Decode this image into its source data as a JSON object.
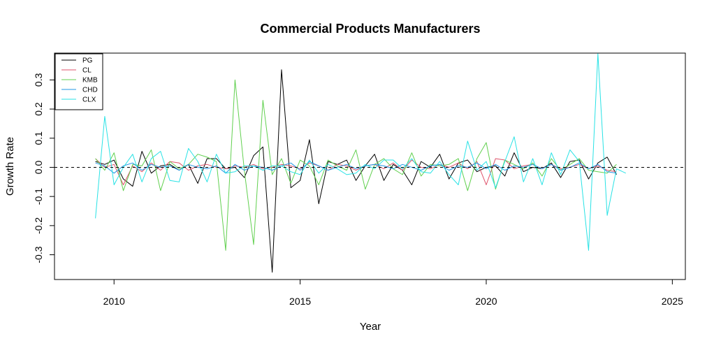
{
  "chart_data": {
    "type": "line",
    "title": "Commercial Products Manufacturers",
    "xlabel": "Year",
    "ylabel": "Growth Rate",
    "xlim": [
      2008.4,
      2025.35
    ],
    "ylim": [
      -0.385,
      0.392
    ],
    "x_ticks": [
      2010,
      2015,
      2020,
      2025
    ],
    "y_ticks": [
      -0.3,
      -0.2,
      -0.1,
      0.0,
      0.1,
      0.2,
      0.3
    ],
    "y_tick_labels": [
      "-0.3",
      "-0.2",
      "-0.1",
      "0.0",
      "0.1",
      "0.2",
      "0.3"
    ],
    "reference_line": {
      "y": 0,
      "style": "dashed",
      "color": "#000000"
    },
    "legend": {
      "position": "top-left"
    },
    "x_start": 2009.5,
    "x_step": 0.25,
    "series": [
      {
        "name": "PG",
        "color": "#000000",
        "values": [
          0.02,
          0.01,
          0.025,
          -0.04,
          -0.065,
          0.055,
          -0.02,
          0.005,
          0.01,
          -0.01,
          0.01,
          -0.055,
          0.03,
          0.03,
          -0.005,
          0.0,
          -0.035,
          0.04,
          0.07,
          -0.36,
          0.335,
          -0.07,
          -0.045,
          0.095,
          -0.125,
          0.02,
          0.01,
          0.025,
          -0.045,
          0.005,
          0.045,
          -0.045,
          0.01,
          -0.01,
          -0.06,
          0.02,
          0.0,
          0.045,
          -0.04,
          0.015,
          0.025,
          -0.015,
          0.0,
          0.005,
          -0.03,
          0.05,
          -0.015,
          0.0,
          -0.005,
          0.015,
          -0.035,
          0.02,
          0.025,
          -0.04,
          0.015,
          0.035,
          -0.025
        ]
      },
      {
        "name": "CL",
        "color": "#DF536B",
        "values": [
          0.03,
          0.0,
          0.01,
          -0.06,
          0.005,
          -0.015,
          0.015,
          -0.01,
          0.02,
          0.015,
          -0.01,
          0.005,
          0.01,
          0.0,
          -0.005,
          0.005,
          0.0,
          0.01,
          -0.005,
          0.0,
          0.01,
          0.005,
          -0.005,
          0.015,
          0.005,
          -0.01,
          0.01,
          0.005,
          -0.01,
          0.005,
          0.01,
          -0.005,
          0.015,
          -0.01,
          0.025,
          0.0,
          -0.005,
          0.01,
          0.0,
          0.015,
          -0.005,
          0.02,
          -0.06,
          0.03,
          0.025,
          -0.005,
          0.005,
          0.01,
          -0.005,
          0.01,
          -0.005,
          0.0,
          0.01,
          -0.005,
          0.005,
          -0.01,
          -0.015
        ]
      },
      {
        "name": "KMB",
        "color": "#61D04F",
        "values": [
          0.03,
          -0.01,
          0.05,
          -0.08,
          0.01,
          0.005,
          0.06,
          -0.08,
          0.02,
          -0.005,
          0.01,
          0.045,
          0.035,
          0.02,
          -0.285,
          0.3,
          -0.01,
          -0.265,
          0.23,
          -0.025,
          0.03,
          -0.055,
          0.025,
          0.005,
          -0.06,
          0.025,
          0.005,
          -0.01,
          0.06,
          -0.075,
          0.01,
          0.03,
          -0.005,
          -0.025,
          0.05,
          -0.03,
          0.01,
          0.005,
          0.01,
          0.03,
          -0.08,
          0.03,
          0.085,
          -0.075,
          0.025,
          0.01,
          -0.005,
          0.015,
          -0.03,
          0.03,
          -0.01,
          0.01,
          0.03,
          -0.01,
          -0.015,
          -0.02,
          0.01
        ]
      },
      {
        "name": "CHD",
        "color": "#2297E6",
        "values": [
          0.015,
          0.005,
          -0.02,
          0.005,
          0.015,
          -0.01,
          0.01,
          0.0,
          0.005,
          -0.01,
          0.01,
          0.0,
          -0.005,
          0.005,
          -0.02,
          0.01,
          -0.01,
          0.005,
          0.0,
          -0.01,
          0.005,
          0.015,
          -0.01,
          0.02,
          0.005,
          -0.01,
          0.0,
          0.01,
          -0.005,
          0.005,
          0.01,
          0.005,
          -0.005,
          0.01,
          0.0,
          -0.01,
          0.005,
          0.01,
          -0.01,
          0.005,
          0.0,
          0.015,
          -0.005,
          0.01,
          -0.01,
          0.005,
          0.0,
          0.01,
          -0.005,
          0.01,
          -0.01,
          0.0,
          0.015,
          -0.005,
          0.01,
          -0.015,
          -0.02
        ]
      },
      {
        "name": "CLX",
        "color": "#28E2E5",
        "values": [
          -0.175,
          0.175,
          -0.06,
          0.0,
          0.045,
          -0.05,
          0.03,
          0.055,
          -0.045,
          -0.05,
          0.065,
          0.02,
          -0.05,
          0.045,
          -0.02,
          -0.015,
          0.005,
          0.005,
          -0.01,
          0.005,
          0.005,
          -0.015,
          -0.025,
          0.025,
          -0.02,
          0.01,
          -0.005,
          -0.025,
          -0.02,
          0.01,
          -0.005,
          0.025,
          0.025,
          -0.005,
          0.03,
          -0.015,
          -0.02,
          0.02,
          -0.025,
          -0.06,
          0.09,
          -0.01,
          0.02,
          -0.07,
          0.02,
          0.105,
          -0.05,
          0.03,
          -0.06,
          0.05,
          -0.025,
          0.06,
          0.02,
          -0.285,
          0.39,
          -0.165,
          -0.005,
          -0.02
        ]
      }
    ]
  }
}
